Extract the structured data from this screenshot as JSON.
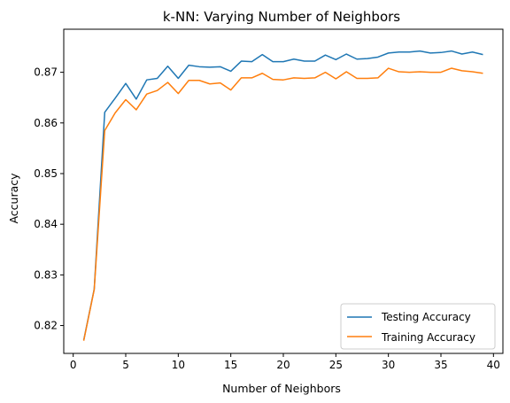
{
  "chart_data": {
    "type": "line",
    "title": "k-NN: Varying Number of Neighbors",
    "xlabel": "Number of Neighbors",
    "ylabel": "Accuracy",
    "xlim": [
      -0.9,
      40.9
    ],
    "ylim": [
      0.8145,
      0.8785
    ],
    "xticks": [
      0,
      5,
      10,
      15,
      20,
      25,
      30,
      35,
      40
    ],
    "yticks": [
      0.82,
      0.83,
      0.84,
      0.85,
      0.86,
      0.87
    ],
    "ytick_labels": [
      "0.82",
      "0.83",
      "0.84",
      "0.85",
      "0.86",
      "0.87"
    ],
    "legend_position": "lower-right",
    "grid": false,
    "x": [
      1,
      2,
      3,
      4,
      5,
      6,
      7,
      8,
      9,
      10,
      11,
      12,
      13,
      14,
      15,
      16,
      17,
      18,
      19,
      20,
      21,
      22,
      23,
      24,
      25,
      26,
      27,
      28,
      29,
      30,
      31,
      32,
      33,
      34,
      35,
      36,
      37,
      38,
      39
    ],
    "series": [
      {
        "name": "Testing Accuracy",
        "color": "#1f77b4",
        "values": [
          0.8171,
          0.8272,
          0.8621,
          0.8649,
          0.8678,
          0.8647,
          0.8685,
          0.8688,
          0.8712,
          0.8688,
          0.8714,
          0.8711,
          0.871,
          0.8711,
          0.8702,
          0.8722,
          0.8721,
          0.8735,
          0.8721,
          0.8721,
          0.8726,
          0.8722,
          0.8722,
          0.8734,
          0.8725,
          0.8736,
          0.8726,
          0.8727,
          0.873,
          0.8738,
          0.874,
          0.874,
          0.8742,
          0.8738,
          0.8739,
          0.8742,
          0.8736,
          0.874,
          0.8735
        ]
      },
      {
        "name": "Training Accuracy",
        "color": "#ff7f0e",
        "values": [
          0.817,
          0.8271,
          0.8585,
          0.862,
          0.8646,
          0.8626,
          0.8657,
          0.8664,
          0.868,
          0.8658,
          0.8684,
          0.8684,
          0.8677,
          0.8679,
          0.8665,
          0.8689,
          0.8689,
          0.8698,
          0.8686,
          0.8685,
          0.8689,
          0.8688,
          0.8689,
          0.87,
          0.8687,
          0.8701,
          0.8688,
          0.8688,
          0.8689,
          0.8708,
          0.8701,
          0.87,
          0.8701,
          0.87,
          0.87,
          0.8708,
          0.8703,
          0.8701,
          0.8698
        ]
      }
    ]
  }
}
